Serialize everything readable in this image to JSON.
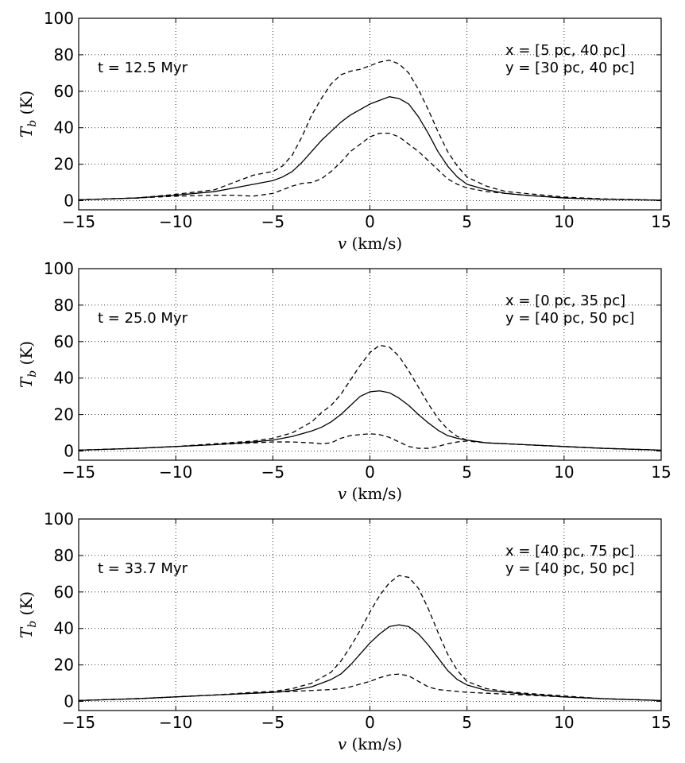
{
  "chart_data": [
    {
      "type": "line",
      "panel": "top",
      "time_label": "t = 12.5 Myr",
      "region_x": "x = [5 pc, 40 pc]",
      "region_y": "y = [30 pc, 40 pc]",
      "xlabel_var": "v",
      "xlabel_unit": "(km/s)",
      "ylabel_var": "T",
      "ylabel_sub": "b",
      "ylabel_unit": "(K)",
      "xlim": [
        -15,
        15
      ],
      "ylim": [
        -5,
        100
      ],
      "xticks": [
        -15,
        -10,
        -5,
        0,
        5,
        10,
        15
      ],
      "xtick_labels": [
        "−15",
        "−10",
        "−5",
        "0",
        "5",
        "10",
        "15"
      ],
      "yticks": [
        0,
        20,
        40,
        60,
        80,
        100
      ],
      "ytick_labels": [
        "0",
        "20",
        "40",
        "60",
        "80",
        "100"
      ],
      "grid": true,
      "x": [
        -15,
        -12,
        -10,
        -8,
        -7,
        -6,
        -5,
        -4.5,
        -4,
        -3.5,
        -3,
        -2.5,
        -2,
        -1.5,
        -1,
        -0.5,
        0,
        0.5,
        1,
        1.5,
        2,
        2.5,
        3,
        3.5,
        4,
        4.5,
        5,
        6,
        7,
        8,
        10,
        12,
        15
      ],
      "series": [
        {
          "name": "mean",
          "style": "solid",
          "values": [
            0.5,
            1.5,
            3,
            5,
            7,
            9,
            11,
            13,
            16,
            21,
            27,
            33,
            38,
            43,
            47,
            50,
            53,
            55,
            57,
            56,
            53,
            46,
            37,
            27,
            19,
            13,
            9,
            6,
            4,
            3,
            1.5,
            0.8,
            0.3
          ]
        },
        {
          "name": "upper",
          "style": "dashed",
          "values": [
            0.5,
            1.5,
            3.5,
            6,
            10,
            14,
            16,
            19,
            25,
            35,
            47,
            56,
            64,
            69,
            71,
            72,
            74,
            76,
            77,
            75,
            70,
            61,
            50,
            38,
            27,
            19,
            13,
            8,
            5,
            4,
            2,
            1,
            0.3
          ]
        },
        {
          "name": "lower",
          "style": "dashed",
          "values": [
            0.5,
            1.5,
            2.5,
            3,
            3,
            2.5,
            4,
            6,
            8,
            9.5,
            10,
            12,
            16,
            21,
            27,
            31,
            35,
            37,
            37,
            35,
            31,
            27,
            22,
            17,
            12,
            9,
            7,
            5,
            4,
            3,
            1.5,
            0.8,
            0.3
          ]
        }
      ]
    },
    {
      "type": "line",
      "panel": "middle",
      "time_label": "t = 25.0 Myr",
      "region_x": "x = [0 pc, 35 pc]",
      "region_y": "y = [40 pc, 50 pc]",
      "xlabel_var": "v",
      "xlabel_unit": "(km/s)",
      "ylabel_var": "T",
      "ylabel_sub": "b",
      "ylabel_unit": "(K)",
      "xlim": [
        -15,
        15
      ],
      "ylim": [
        -5,
        100
      ],
      "xticks": [
        -15,
        -10,
        -5,
        0,
        5,
        10,
        15
      ],
      "xtick_labels": [
        "−15",
        "−10",
        "−5",
        "0",
        "5",
        "10",
        "15"
      ],
      "yticks": [
        0,
        20,
        40,
        60,
        80,
        100
      ],
      "ytick_labels": [
        "0",
        "20",
        "40",
        "60",
        "80",
        "100"
      ],
      "grid": true,
      "x": [
        -15,
        -12,
        -10,
        -8,
        -6,
        -5,
        -4,
        -3,
        -2.5,
        -2,
        -1.5,
        -1,
        -0.5,
        0,
        0.5,
        1,
        1.5,
        2,
        2.5,
        3,
        3.5,
        4,
        4.5,
        5,
        6,
        8,
        10,
        12,
        15
      ],
      "series": [
        {
          "name": "mean",
          "style": "solid",
          "values": [
            0.5,
            1.5,
            2.5,
            3.5,
            5,
            6,
            8,
            11,
            13,
            16,
            20,
            25,
            30,
            32.5,
            33,
            32,
            29,
            25,
            20,
            15.5,
            11.5,
            8.5,
            7,
            6,
            4.5,
            3.5,
            2.5,
            1.5,
            0.5
          ]
        },
        {
          "name": "upper",
          "style": "dashed",
          "values": [
            0.5,
            1.5,
            2.5,
            4,
            5.5,
            7,
            10,
            16,
            21,
            25,
            31,
            39,
            47,
            54,
            58,
            57,
            52,
            44,
            35,
            26,
            18,
            12,
            8,
            6,
            4.5,
            3.5,
            2.5,
            1.5,
            0.5
          ]
        },
        {
          "name": "lower",
          "style": "dashed",
          "values": [
            0.5,
            1.5,
            2.5,
            3.5,
            4.5,
            5,
            5,
            4.5,
            4,
            4.5,
            7,
            8.5,
            9,
            9.5,
            9,
            7.5,
            5,
            2.5,
            1.5,
            1.5,
            2.5,
            4,
            5,
            5.5,
            4.5,
            3.5,
            2.5,
            1.5,
            0.5
          ]
        }
      ]
    },
    {
      "type": "line",
      "panel": "bottom",
      "time_label": "t = 33.7 Myr",
      "region_x": "x = [40 pc, 75 pc]",
      "region_y": "y = [40 pc, 50 pc]",
      "xlabel_var": "v",
      "xlabel_unit": "(km/s)",
      "ylabel_var": "T",
      "ylabel_sub": "b",
      "ylabel_unit": "(K)",
      "xlim": [
        -15,
        15
      ],
      "ylim": [
        -5,
        100
      ],
      "xticks": [
        -15,
        -10,
        -5,
        0,
        5,
        10,
        15
      ],
      "xtick_labels": [
        "−15",
        "−10",
        "−5",
        "0",
        "5",
        "10",
        "15"
      ],
      "yticks": [
        0,
        20,
        40,
        60,
        80,
        100
      ],
      "ytick_labels": [
        "0",
        "20",
        "40",
        "60",
        "80",
        "100"
      ],
      "grid": true,
      "x": [
        -15,
        -12,
        -10,
        -8,
        -6,
        -5,
        -4,
        -3,
        -2,
        -1.5,
        -1,
        -0.5,
        0,
        0.5,
        1,
        1.5,
        2,
        2.5,
        3,
        3.5,
        4,
        4.5,
        5,
        6,
        7,
        8,
        10,
        12,
        15
      ],
      "series": [
        {
          "name": "mean",
          "style": "solid",
          "values": [
            0.5,
            1.5,
            2.5,
            3.5,
            4.5,
            5,
            6,
            8,
            12,
            15,
            20,
            26,
            32,
            37,
            41,
            42,
            41,
            37,
            31,
            24,
            17,
            12,
            9,
            6,
            5,
            4,
            2.5,
            1.5,
            0.5
          ]
        },
        {
          "name": "upper",
          "style": "dashed",
          "values": [
            0.5,
            1.5,
            2.5,
            3.5,
            5,
            5.5,
            7,
            10,
            16,
            22,
            30,
            39,
            49,
            58,
            65,
            69,
            68,
            62,
            51,
            38,
            26,
            17,
            11,
            7,
            5.5,
            4.5,
            3,
            1.5,
            0.5
          ]
        },
        {
          "name": "lower",
          "style": "dashed",
          "values": [
            0.5,
            1.5,
            2.5,
            3.5,
            4.5,
            5,
            5.5,
            6,
            6.5,
            7,
            8,
            9.5,
            11,
            13,
            14.5,
            15,
            14,
            11,
            8,
            6.5,
            6,
            5.5,
            5,
            4.5,
            4,
            3.5,
            2.5,
            1.5,
            0.5
          ]
        }
      ]
    }
  ]
}
